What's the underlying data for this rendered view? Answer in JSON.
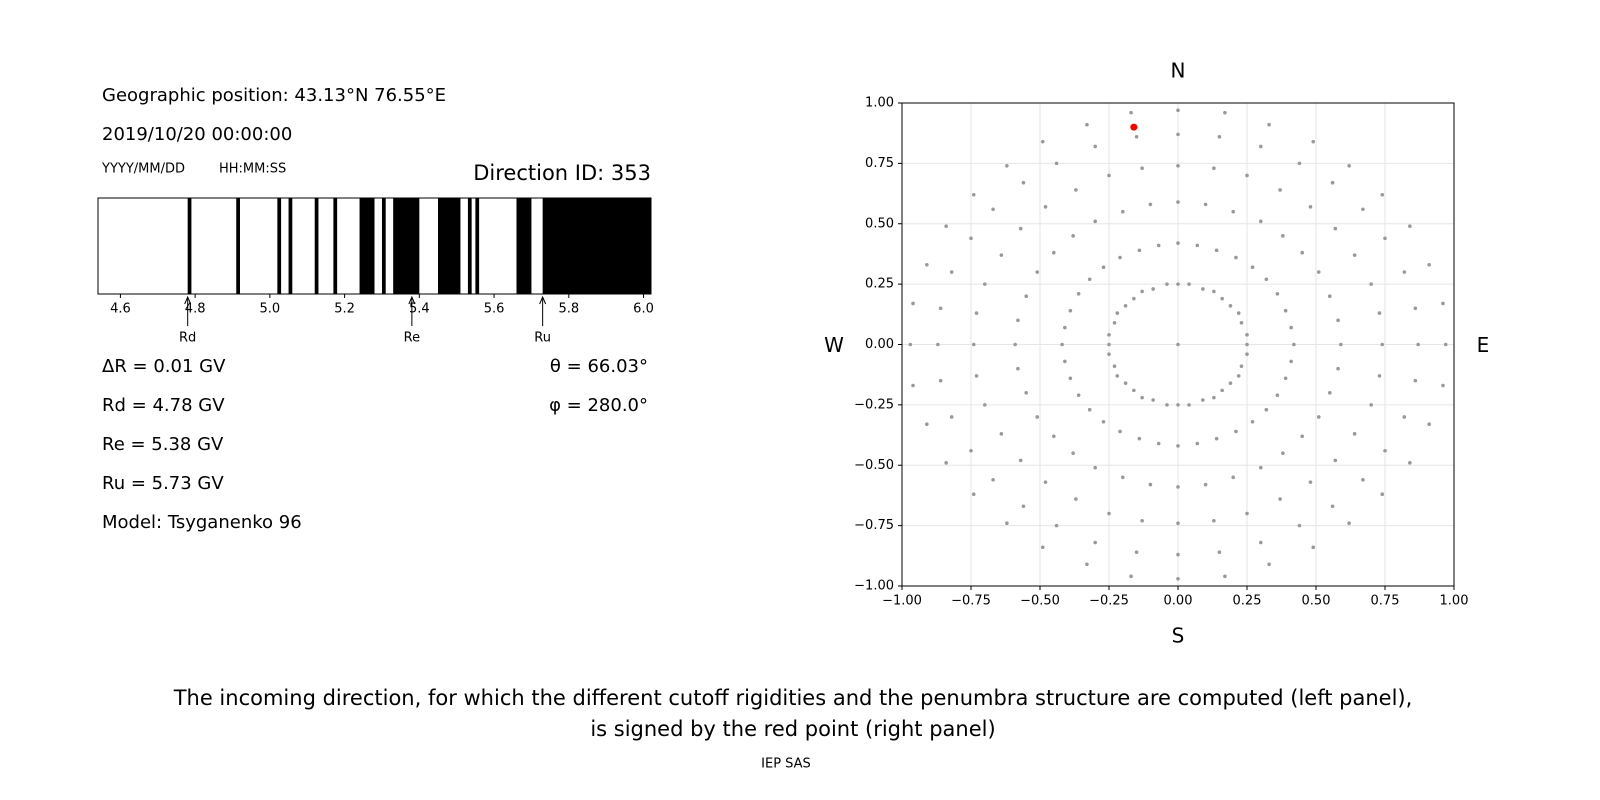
{
  "chart_data": [
    {
      "type": "penumbra",
      "position": "Geographic position: 43.13°N 76.55°E",
      "datetime": "2019/10/20 00:00:00",
      "date_format": "YYYY/MM/DD",
      "time_format": "HH:MM:SS",
      "direction_id": "Direction ID: 353",
      "delta_r": "ΔR = 0.01 GV",
      "rd": "Rd = 4.78 GV",
      "re": "Re = 5.38 GV",
      "ru": "Ru = 5.73 GV",
      "model": "Model: Tsyganenko 96",
      "theta": "θ = 66.03°",
      "phi": "φ = 280.0°",
      "color": "#000000",
      "bands": [
        [
          4.78,
          4.79
        ],
        [
          4.91,
          4.92
        ],
        [
          5.02,
          5.03
        ],
        [
          5.05,
          5.06
        ],
        [
          5.12,
          5.13
        ],
        [
          5.17,
          5.18
        ],
        [
          5.24,
          5.28
        ],
        [
          5.3,
          5.31
        ],
        [
          5.33,
          5.4
        ],
        [
          5.45,
          5.51
        ],
        [
          5.53,
          5.54
        ],
        [
          5.55,
          5.56
        ],
        [
          5.66,
          5.7
        ],
        [
          5.73,
          6.02
        ]
      ],
      "markers": [
        {
          "label": "Rd",
          "value": 4.78
        },
        {
          "label": "Re",
          "value": 5.38
        },
        {
          "label": "Ru",
          "value": 5.73
        }
      ],
      "xlim": [
        4.54,
        6.02
      ],
      "xticks": [
        4.6,
        4.8,
        {
          "value": 5,
          "label": "5.0"
        },
        5.2,
        5.4,
        5.6,
        5.8,
        {
          "value": 6,
          "label": "6.0"
        }
      ]
    },
    {
      "type": "scatter",
      "compass": {
        "north": "N",
        "south": "S",
        "west": "W",
        "east": "E"
      },
      "xlim": [
        -1,
        1
      ],
      "ylim": [
        -1,
        1
      ],
      "grid": true,
      "xticks": [
        {
          "value": -1,
          "label": "−1.00"
        },
        {
          "value": -0.75,
          "label": "−0.75"
        },
        {
          "value": -0.5,
          "label": "−0.50"
        },
        {
          "value": -0.25,
          "label": "−0.25"
        },
        {
          "value": 0,
          "label": "0.00"
        },
        {
          "value": 0.25,
          "label": "0.25"
        },
        {
          "value": 0.5,
          "label": "0.50"
        },
        {
          "value": 0.75,
          "label": "0.75"
        },
        {
          "value": 1,
          "label": "1.00"
        }
      ],
      "yticks": [
        {
          "value": -1,
          "label": "−1.00"
        },
        {
          "value": -0.75,
          "label": "−0.75"
        },
        {
          "value": -0.5,
          "label": "−0.50"
        },
        {
          "value": -0.25,
          "label": "−0.25"
        },
        {
          "value": 0,
          "label": "0.00"
        },
        {
          "value": 0.25,
          "label": "0.25"
        },
        {
          "value": 0.5,
          "label": "0.50"
        },
        {
          "value": 0.75,
          "label": "0.75"
        },
        {
          "value": 1,
          "label": "1.00"
        }
      ],
      "series": [
        {
          "color": "#999999",
          "x": [
            0,
            0.04,
            0.09,
            0.13,
            0.16,
            0.19,
            0.22,
            0.23,
            0.25,
            0,
            0.07,
            0.14,
            0.21,
            0.27,
            0.32,
            0.36,
            0.39,
            0.41,
            0,
            0.1,
            0.2,
            0.3,
            0.38,
            0.45,
            0.51,
            0.55,
            0.58,
            0,
            0.13,
            0.25,
            0.37,
            0.48,
            0.57,
            0.64,
            0.7,
            0.73,
            0,
            0.15,
            0.3,
            0.44,
            0.56,
            0.67,
            0.75,
            0.82,
            0.86,
            0,
            0.17,
            0.33,
            0.49,
            0.62,
            0.74,
            0.84,
            0.91,
            0.96,
            0.25,
            0.25,
            0.23,
            0.22,
            0.19,
            0.16,
            0.13,
            0.09,
            0.04,
            0.42,
            0.41,
            0.39,
            0.36,
            0.32,
            0.27,
            0.21,
            0.14,
            0.07,
            0.59,
            0.58,
            0.55,
            0.51,
            0.45,
            0.38,
            0.3,
            0.2,
            0.1,
            0.74,
            0.73,
            0.7,
            0.64,
            0.57,
            0.48,
            0.37,
            0.25,
            0.13,
            0.87,
            0.86,
            0.82,
            0.75,
            0.67,
            0.56,
            0.44,
            0.3,
            0.15,
            0.97,
            0.96,
            0.91,
            0.84,
            0.74,
            0.62,
            0.49,
            0.33,
            0.17,
            0,
            -0.04,
            -0.09,
            -0.13,
            -0.16,
            -0.19,
            -0.22,
            -0.23,
            -0.25,
            0,
            -0.07,
            -0.14,
            -0.21,
            -0.27,
            -0.32,
            -0.36,
            -0.39,
            -0.41,
            0,
            -0.1,
            -0.2,
            -0.3,
            -0.38,
            -0.45,
            -0.51,
            -0.55,
            -0.58,
            0,
            -0.13,
            -0.25,
            -0.37,
            -0.48,
            -0.57,
            -0.64,
            -0.7,
            -0.73,
            0,
            -0.15,
            -0.3,
            -0.44,
            -0.56,
            -0.67,
            -0.75,
            -0.82,
            -0.86,
            0,
            -0.17,
            -0.33,
            -0.49,
            -0.62,
            -0.74,
            -0.84,
            -0.91,
            -0.96,
            -0.25,
            -0.25,
            -0.23,
            -0.22,
            -0.19,
            -0.16,
            -0.13,
            -0.09,
            -0.04,
            -0.42,
            -0.41,
            -0.39,
            -0.36,
            -0.32,
            -0.27,
            -0.21,
            -0.14,
            -0.07,
            -0.59,
            -0.58,
            -0.55,
            -0.51,
            -0.45,
            -0.38,
            -0.3,
            -0.2,
            -0.1,
            -0.74,
            -0.73,
            -0.7,
            -0.64,
            -0.57,
            -0.48,
            -0.37,
            -0.25,
            -0.13,
            -0.87,
            -0.86,
            -0.82,
            -0.75,
            -0.67,
            -0.56,
            -0.44,
            -0.3,
            -0.15,
            -0.97,
            -0.96,
            -0.91,
            -0.84,
            -0.74,
            -0.62,
            -0.49,
            -0.33,
            -0.17,
            0
          ],
          "y": [
            0.25,
            0.25,
            0.23,
            0.22,
            0.19,
            0.16,
            0.13,
            0.09,
            0.04,
            0.42,
            0.41,
            0.39,
            0.36,
            0.32,
            0.27,
            0.21,
            0.14,
            0.07,
            0.59,
            0.58,
            0.55,
            0.51,
            0.45,
            0.38,
            0.3,
            0.2,
            0.1,
            0.74,
            0.73,
            0.7,
            0.64,
            0.57,
            0.48,
            0.37,
            0.25,
            0.13,
            0.87,
            0.86,
            0.82,
            0.75,
            0.67,
            0.56,
            0.44,
            0.3,
            0.15,
            0.97,
            0.96,
            0.91,
            0.84,
            0.74,
            0.62,
            0.49,
            0.33,
            0.17,
            0,
            -0.04,
            -0.09,
            -0.13,
            -0.16,
            -0.19,
            -0.22,
            -0.23,
            -0.25,
            0,
            -0.07,
            -0.14,
            -0.21,
            -0.27,
            -0.32,
            -0.36,
            -0.39,
            -0.41,
            0,
            -0.1,
            -0.2,
            -0.3,
            -0.38,
            -0.45,
            -0.51,
            -0.55,
            -0.58,
            0,
            -0.13,
            -0.25,
            -0.37,
            -0.48,
            -0.57,
            -0.64,
            -0.7,
            -0.73,
            0,
            -0.15,
            -0.3,
            -0.44,
            -0.56,
            -0.67,
            -0.75,
            -0.82,
            -0.86,
            0,
            -0.17,
            -0.33,
            -0.49,
            -0.62,
            -0.74,
            -0.84,
            -0.91,
            -0.96,
            -0.25,
            -0.25,
            -0.23,
            -0.22,
            -0.19,
            -0.16,
            -0.13,
            -0.09,
            -0.04,
            -0.42,
            -0.41,
            -0.39,
            -0.36,
            -0.32,
            -0.27,
            -0.21,
            -0.14,
            -0.07,
            -0.59,
            -0.58,
            -0.55,
            -0.51,
            -0.45,
            -0.38,
            -0.3,
            -0.2,
            -0.1,
            -0.74,
            -0.73,
            -0.7,
            -0.64,
            -0.57,
            -0.48,
            -0.37,
            -0.25,
            -0.13,
            -0.87,
            -0.86,
            -0.82,
            -0.75,
            -0.67,
            -0.56,
            -0.44,
            -0.3,
            -0.15,
            -0.97,
            -0.96,
            -0.91,
            -0.84,
            -0.74,
            -0.62,
            -0.49,
            -0.33,
            -0.17,
            0,
            0.04,
            0.09,
            0.13,
            0.16,
            0.19,
            0.22,
            0.23,
            0.25,
            0,
            0.07,
            0.14,
            0.21,
            0.27,
            0.32,
            0.36,
            0.39,
            0.41,
            0,
            0.1,
            0.2,
            0.3,
            0.38,
            0.45,
            0.51,
            0.55,
            0.58,
            0,
            0.13,
            0.25,
            0.37,
            0.48,
            0.57,
            0.64,
            0.7,
            0.73,
            0,
            0.15,
            0.3,
            0.44,
            0.56,
            0.67,
            0.75,
            0.82,
            0.86,
            0,
            0.17,
            0.33,
            0.49,
            0.62,
            0.74,
            0.84,
            0.91,
            0.96,
            0
          ]
        },
        {
          "color": "#ff0000",
          "x": [
            -0.16
          ],
          "y": [
            0.9
          ]
        }
      ]
    }
  ],
  "caption": [
    "The incoming direction, for which the different cutoff rigidities and the penumbra structure are computed (left panel),",
    "is signed by the red point (right panel)"
  ],
  "footer": "IEP SAS"
}
